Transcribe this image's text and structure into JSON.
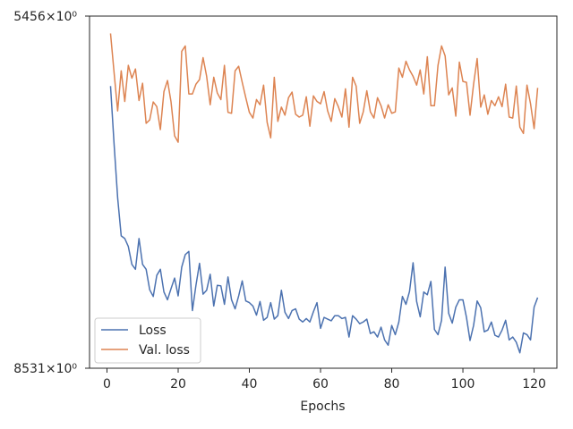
{
  "chart_data": {
    "type": "line",
    "xlabel": "Epochs",
    "x": [
      1,
      2,
      3,
      4,
      5,
      6,
      7,
      8,
      9,
      10,
      11,
      12,
      13,
      14,
      15,
      16,
      17,
      18,
      19,
      20,
      21,
      22,
      23,
      24,
      25,
      26,
      27,
      28,
      29,
      30,
      31,
      32,
      33,
      34,
      35,
      36,
      37,
      38,
      39,
      40,
      41,
      42,
      43,
      44,
      45,
      46,
      47,
      48,
      49,
      50,
      51,
      52,
      53,
      54,
      55,
      56,
      57,
      58,
      59,
      60,
      61,
      62,
      63,
      64,
      65,
      66,
      67,
      68,
      69,
      70,
      71,
      72,
      73,
      74,
      75,
      76,
      77,
      78,
      79,
      80,
      81,
      82,
      83,
      84,
      85,
      86,
      87,
      88,
      89,
      90,
      91,
      92,
      93,
      94,
      95,
      96,
      97,
      98,
      99,
      100,
      101,
      102,
      103,
      104,
      105,
      106,
      107,
      108,
      109,
      110,
      111,
      112,
      113,
      114,
      115,
      116,
      117,
      118,
      119,
      120,
      121
    ],
    "series": [
      {
        "name": "Loss",
        "color": "#4c72b0",
        "values": [
          2.39,
          2.268,
          2.161,
          2.088,
          2.083,
          2.068,
          2.035,
          2.026,
          2.083,
          2.035,
          2.026,
          1.989,
          1.977,
          2.015,
          2.026,
          1.985,
          1.971,
          1.991,
          2.01,
          1.978,
          2.03,
          2.053,
          2.059,
          1.952,
          1.997,
          2.037,
          1.981,
          1.988,
          2.017,
          1.96,
          1.997,
          1.996,
          1.963,
          2.012,
          1.971,
          1.955,
          1.978,
          2.005,
          1.969,
          1.966,
          1.96,
          1.944,
          1.968,
          1.935,
          1.94,
          1.966,
          1.937,
          1.943,
          1.988,
          1.949,
          1.938,
          1.952,
          1.955,
          1.937,
          1.932,
          1.938,
          1.932,
          1.95,
          1.966,
          1.921,
          1.94,
          1.937,
          1.934,
          1.943,
          1.943,
          1.938,
          1.94,
          1.906,
          1.943,
          1.937,
          1.929,
          1.932,
          1.937,
          1.912,
          1.915,
          1.906,
          1.923,
          1.901,
          1.892,
          1.926,
          1.91,
          1.932,
          1.977,
          1.963,
          1.986,
          2.038,
          1.968,
          1.941,
          1.985,
          1.98,
          2.004,
          1.919,
          1.91,
          1.935,
          2.03,
          1.947,
          1.93,
          1.958,
          1.971,
          1.971,
          1.94,
          1.9,
          1.926,
          1.969,
          1.957,
          1.915,
          1.918,
          1.932,
          1.909,
          1.906,
          1.918,
          1.935,
          1.901,
          1.906,
          1.897,
          1.879,
          1.913,
          1.91,
          1.901,
          1.958,
          1.975
        ]
      },
      {
        "name": "Val. loss",
        "color": "#dd8452",
        "values": [
          2.506,
          2.419,
          2.337,
          2.423,
          2.357,
          2.435,
          2.407,
          2.427,
          2.359,
          2.396,
          2.311,
          2.318,
          2.356,
          2.346,
          2.298,
          2.378,
          2.402,
          2.356,
          2.285,
          2.272,
          2.466,
          2.478,
          2.373,
          2.373,
          2.394,
          2.404,
          2.452,
          2.411,
          2.35,
          2.409,
          2.375,
          2.361,
          2.435,
          2.334,
          2.332,
          2.423,
          2.433,
          2.398,
          2.365,
          2.334,
          2.322,
          2.361,
          2.35,
          2.392,
          2.313,
          2.281,
          2.409,
          2.315,
          2.345,
          2.328,
          2.365,
          2.377,
          2.33,
          2.324,
          2.328,
          2.367,
          2.305,
          2.369,
          2.357,
          2.352,
          2.378,
          2.337,
          2.315,
          2.363,
          2.346,
          2.324,
          2.384,
          2.303,
          2.409,
          2.39,
          2.311,
          2.335,
          2.38,
          2.335,
          2.322,
          2.365,
          2.348,
          2.322,
          2.35,
          2.332,
          2.335,
          2.429,
          2.409,
          2.444,
          2.425,
          2.411,
          2.392,
          2.425,
          2.373,
          2.454,
          2.348,
          2.348,
          2.435,
          2.478,
          2.456,
          2.371,
          2.386,
          2.326,
          2.442,
          2.4,
          2.398,
          2.328,
          2.394,
          2.45,
          2.345,
          2.371,
          2.33,
          2.359,
          2.348,
          2.367,
          2.346,
          2.394,
          2.324,
          2.322,
          2.39,
          2.303,
          2.29,
          2.392,
          2.352,
          2.3,
          2.386
        ]
      }
    ],
    "xlim": [
      -4.9,
      126.4
    ],
    "xticks": [
      0,
      20,
      40,
      60,
      80,
      100,
      120
    ],
    "ylim": [
      1.8531,
      2.5456
    ],
    "yscale": "log",
    "yticks": [
      {
        "value": 1.8531,
        "label": "8531×10⁰"
      },
      {
        "value": 2.5456,
        "label": "5456×10⁰"
      }
    ],
    "legend": "lower left"
  }
}
